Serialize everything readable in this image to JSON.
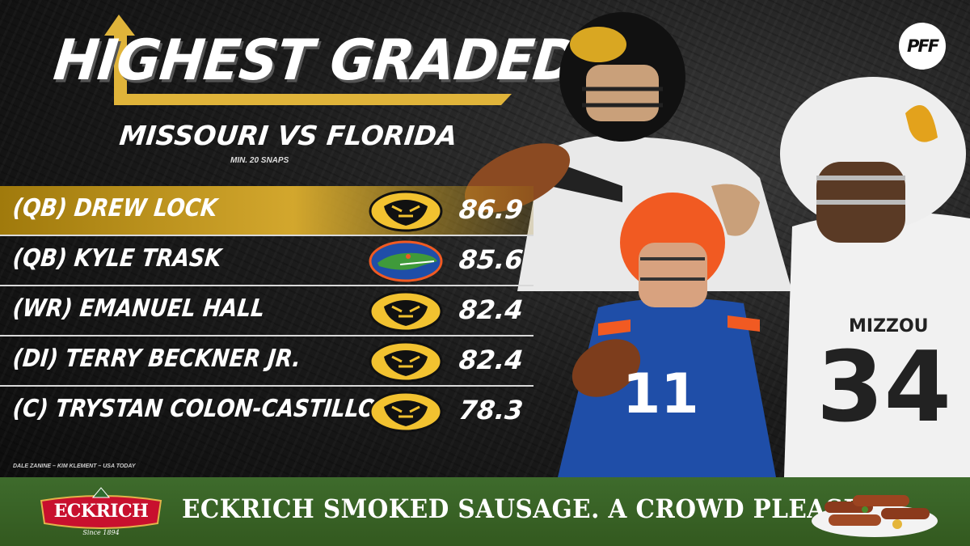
{
  "header": {
    "title": "HIGHEST GRADED",
    "subtitle": "MISSOURI VS FLORIDA",
    "note": "MIN. 20 SNAPS",
    "brand": "PFF"
  },
  "rows": [
    {
      "label": "(QB) DREW LOCK",
      "team_icon": "missouri-tiger-icon",
      "grade": "86.9",
      "highlighted": true
    },
    {
      "label": "(QB) KYLE TRASK",
      "team_icon": "florida-gator-icon",
      "grade": "85.6",
      "highlighted": false
    },
    {
      "label": "(WR) EMANUEL HALL",
      "team_icon": "missouri-tiger-icon",
      "grade": "82.4",
      "highlighted": false
    },
    {
      "label": "(DI) TERRY BECKNER JR.",
      "team_icon": "missouri-tiger-icon",
      "grade": "82.4",
      "highlighted": false
    },
    {
      "label": "(C) TRYSTAN COLON-CASTILLO",
      "team_icon": "missouri-tiger-icon",
      "grade": "78.3",
      "highlighted": false
    }
  ],
  "photo_credit": "DALE ZANINE – KIM KLEMENT – USA TODAY",
  "ad": {
    "brand": "ECKRICH",
    "since": "Since 1894",
    "tagline": "ECKRICH SMOKED SAUSAGE. A CROWD PLEASER."
  },
  "colors": {
    "gold": "#d3a72d",
    "banner_green": "#3e6b2c",
    "florida_blue": "#1f4ea8",
    "florida_orange": "#f15a22"
  }
}
